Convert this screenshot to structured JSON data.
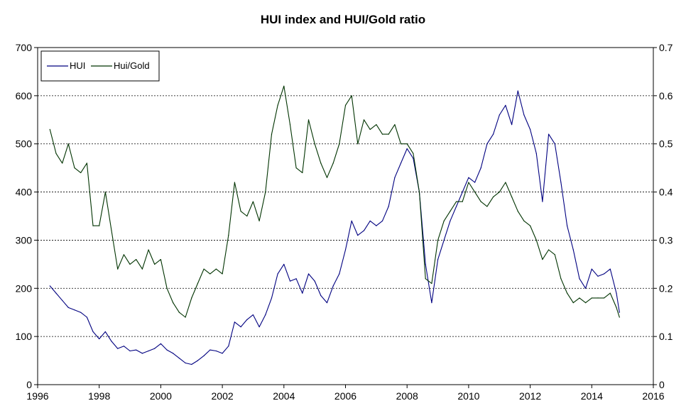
{
  "chart_data": {
    "type": "line",
    "title": "HUI index and HUI/Gold ratio",
    "xlabel": "",
    "ylabel": "",
    "xlim": [
      1996,
      2016
    ],
    "ylim": [
      0,
      700
    ],
    "y2lim": [
      0,
      0.7
    ],
    "x_ticks": [
      1996,
      1998,
      2000,
      2002,
      2004,
      2006,
      2008,
      2010,
      2012,
      2014,
      2016
    ],
    "y_ticks": [
      0,
      100,
      200,
      300,
      400,
      500,
      600,
      700
    ],
    "y2_ticks": [
      0,
      0.1,
      0.2,
      0.3,
      0.4,
      0.5,
      0.6,
      0.7
    ],
    "grid": "horizontal dashed",
    "legend_position": "top-left",
    "colors": {
      "hui": "#000080",
      "ratio": "#003300"
    },
    "series": [
      {
        "name": "HUI",
        "axis": "left",
        "x": [
          1996.4,
          1996.6,
          1996.8,
          1997.0,
          1997.2,
          1997.4,
          1997.6,
          1997.8,
          1998.0,
          1998.2,
          1998.4,
          1998.6,
          1998.8,
          1999.0,
          1999.2,
          1999.4,
          1999.6,
          1999.8,
          2000.0,
          2000.2,
          2000.4,
          2000.6,
          2000.8,
          2001.0,
          2001.2,
          2001.4,
          2001.6,
          2001.8,
          2002.0,
          2002.2,
          2002.4,
          2002.6,
          2002.8,
          2003.0,
          2003.2,
          2003.4,
          2003.6,
          2003.8,
          2004.0,
          2004.2,
          2004.4,
          2004.6,
          2004.8,
          2005.0,
          2005.2,
          2005.4,
          2005.6,
          2005.8,
          2006.0,
          2006.2,
          2006.4,
          2006.6,
          2006.8,
          2007.0,
          2007.2,
          2007.4,
          2007.6,
          2007.8,
          2008.0,
          2008.2,
          2008.4,
          2008.6,
          2008.8,
          2009.0,
          2009.2,
          2009.4,
          2009.6,
          2009.8,
          2010.0,
          2010.2,
          2010.4,
          2010.6,
          2010.8,
          2011.0,
          2011.2,
          2011.4,
          2011.6,
          2011.8,
          2012.0,
          2012.2,
          2012.4,
          2012.6,
          2012.8,
          2013.0,
          2013.2,
          2013.4,
          2013.6,
          2013.8,
          2014.0,
          2014.2,
          2014.4,
          2014.6,
          2014.8,
          2014.9
        ],
        "values": [
          205,
          190,
          175,
          160,
          155,
          150,
          140,
          110,
          95,
          110,
          90,
          75,
          80,
          70,
          72,
          65,
          70,
          75,
          85,
          72,
          65,
          55,
          45,
          42,
          50,
          60,
          72,
          70,
          65,
          80,
          130,
          120,
          135,
          145,
          120,
          145,
          180,
          230,
          250,
          215,
          220,
          190,
          230,
          215,
          185,
          170,
          205,
          230,
          280,
          340,
          310,
          320,
          340,
          330,
          340,
          370,
          430,
          460,
          490,
          470,
          400,
          250,
          170,
          260,
          300,
          340,
          370,
          400,
          430,
          420,
          450,
          500,
          520,
          560,
          580,
          540,
          610,
          560,
          530,
          480,
          380,
          520,
          500,
          420,
          330,
          280,
          220,
          200,
          240,
          225,
          230,
          240,
          190,
          150
        ]
      },
      {
        "name": "Hui/Gold",
        "axis": "right",
        "x": [
          1996.4,
          1996.6,
          1996.8,
          1997.0,
          1997.2,
          1997.4,
          1997.6,
          1997.8,
          1998.0,
          1998.2,
          1998.4,
          1998.6,
          1998.8,
          1999.0,
          1999.2,
          1999.4,
          1999.6,
          1999.8,
          2000.0,
          2000.2,
          2000.4,
          2000.6,
          2000.8,
          2001.0,
          2001.2,
          2001.4,
          2001.6,
          2001.8,
          2002.0,
          2002.2,
          2002.4,
          2002.6,
          2002.8,
          2003.0,
          2003.2,
          2003.4,
          2003.6,
          2003.8,
          2004.0,
          2004.2,
          2004.4,
          2004.6,
          2004.8,
          2005.0,
          2005.2,
          2005.4,
          2005.6,
          2005.8,
          2006.0,
          2006.2,
          2006.4,
          2006.6,
          2006.8,
          2007.0,
          2007.2,
          2007.4,
          2007.6,
          2007.8,
          2008.0,
          2008.2,
          2008.4,
          2008.6,
          2008.8,
          2009.0,
          2009.2,
          2009.4,
          2009.6,
          2009.8,
          2010.0,
          2010.2,
          2010.4,
          2010.6,
          2010.8,
          2011.0,
          2011.2,
          2011.4,
          2011.6,
          2011.8,
          2012.0,
          2012.2,
          2012.4,
          2012.6,
          2012.8,
          2013.0,
          2013.2,
          2013.4,
          2013.6,
          2013.8,
          2014.0,
          2014.2,
          2014.4,
          2014.6,
          2014.8,
          2014.9
        ],
        "values": [
          0.53,
          0.48,
          0.46,
          0.5,
          0.45,
          0.44,
          0.46,
          0.33,
          0.33,
          0.4,
          0.32,
          0.24,
          0.27,
          0.25,
          0.26,
          0.24,
          0.28,
          0.25,
          0.26,
          0.2,
          0.17,
          0.15,
          0.14,
          0.18,
          0.21,
          0.24,
          0.23,
          0.24,
          0.23,
          0.31,
          0.42,
          0.36,
          0.35,
          0.38,
          0.34,
          0.4,
          0.52,
          0.58,
          0.62,
          0.54,
          0.45,
          0.44,
          0.55,
          0.5,
          0.46,
          0.43,
          0.46,
          0.5,
          0.58,
          0.6,
          0.5,
          0.55,
          0.53,
          0.54,
          0.52,
          0.52,
          0.54,
          0.5,
          0.5,
          0.48,
          0.4,
          0.22,
          0.21,
          0.3,
          0.34,
          0.36,
          0.38,
          0.38,
          0.42,
          0.4,
          0.38,
          0.37,
          0.39,
          0.4,
          0.42,
          0.39,
          0.36,
          0.34,
          0.33,
          0.3,
          0.26,
          0.28,
          0.27,
          0.22,
          0.19,
          0.17,
          0.18,
          0.17,
          0.18,
          0.18,
          0.18,
          0.19,
          0.16,
          0.14
        ]
      }
    ]
  }
}
